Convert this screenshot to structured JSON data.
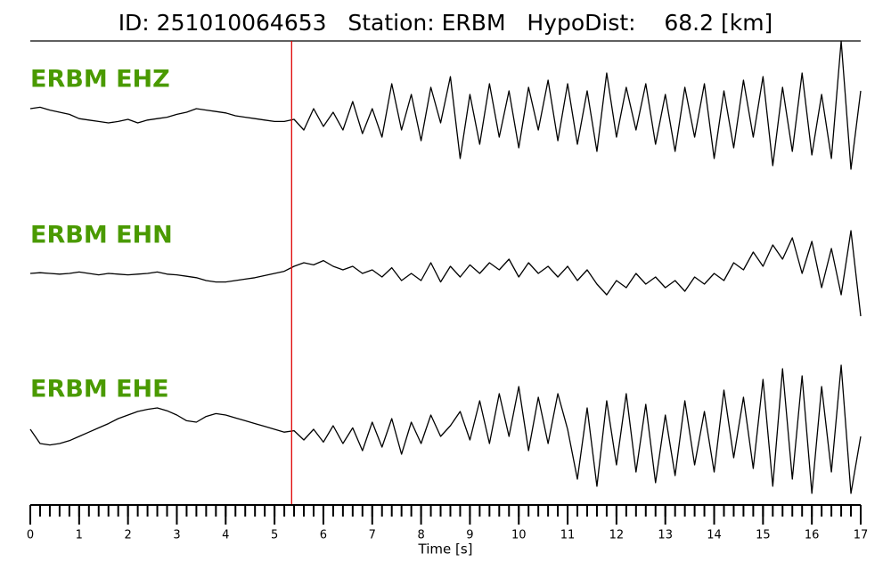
{
  "chart_data": {
    "type": "line",
    "title": "ID: 251010064653   Station: ERBM   HypoDist:    68.2 [km]",
    "xlabel": "Time [s]",
    "xlim": [
      0,
      17
    ],
    "xticks": [
      0,
      1,
      2,
      3,
      4,
      5,
      6,
      7,
      8,
      9,
      10,
      11,
      12,
      13,
      14,
      15,
      16,
      17
    ],
    "minor_tick_step": 0.2,
    "marker_x": 5.35,
    "marker_color": "#e00000",
    "label_color": "#4a9a00",
    "x": [
      0,
      0.2,
      0.4,
      0.6,
      0.8,
      1,
      1.2,
      1.4,
      1.6,
      1.8,
      2,
      2.2,
      2.4,
      2.6,
      2.8,
      3,
      3.2,
      3.4,
      3.6,
      3.8,
      4,
      4.2,
      4.4,
      4.6,
      4.8,
      5,
      5.2,
      5.4,
      5.6,
      5.8,
      6,
      6.2,
      6.4,
      6.6,
      6.8,
      7,
      7.2,
      7.4,
      7.6,
      7.8,
      8,
      8.2,
      8.4,
      8.6,
      8.8,
      9,
      9.2,
      9.4,
      9.6,
      9.8,
      10,
      10.2,
      10.4,
      10.6,
      10.8,
      11,
      11.2,
      11.4,
      11.6,
      11.8,
      12,
      12.2,
      12.4,
      12.6,
      12.8,
      13,
      13.2,
      13.4,
      13.6,
      13.8,
      14,
      14.2,
      14.4,
      14.6,
      14.8,
      15,
      15.2,
      15.4,
      15.6,
      15.8,
      16,
      16.2,
      16.4,
      16.6,
      16.8,
      17
    ],
    "series": [
      {
        "name": "ERBM EHZ",
        "color": "#000000",
        "values": [
          0.1,
          0.12,
          0.08,
          0.05,
          0.02,
          -0.04,
          -0.06,
          -0.08,
          -0.1,
          -0.08,
          -0.05,
          -0.1,
          -0.06,
          -0.04,
          -0.02,
          0.02,
          0.05,
          0.1,
          0.08,
          0.06,
          0.04,
          0.0,
          -0.02,
          -0.04,
          -0.06,
          -0.08,
          -0.08,
          -0.05,
          -0.2,
          0.1,
          -0.15,
          0.05,
          -0.2,
          0.2,
          -0.25,
          0.1,
          -0.3,
          0.45,
          -0.2,
          0.3,
          -0.35,
          0.4,
          -0.1,
          0.55,
          -0.6,
          0.3,
          -0.4,
          0.45,
          -0.3,
          0.35,
          -0.45,
          0.4,
          -0.2,
          0.5,
          -0.35,
          0.45,
          -0.4,
          0.35,
          -0.5,
          0.6,
          -0.3,
          0.4,
          -0.2,
          0.45,
          -0.4,
          0.3,
          -0.5,
          0.4,
          -0.3,
          0.45,
          -0.6,
          0.35,
          -0.45,
          0.5,
          -0.3,
          0.55,
          -0.7,
          0.4,
          -0.5,
          0.6,
          -0.55,
          0.3,
          -0.6,
          1.05,
          -0.75,
          0.35
        ]
      },
      {
        "name": "ERBM EHN",
        "color": "#000000",
        "values": [
          0,
          0.01,
          0.0,
          -0.01,
          0.0,
          0.02,
          0.0,
          -0.02,
          0.0,
          -0.01,
          -0.02,
          -0.01,
          0.0,
          0.02,
          -0.01,
          -0.02,
          -0.04,
          -0.06,
          -0.1,
          -0.12,
          -0.12,
          -0.1,
          -0.08,
          -0.06,
          -0.03,
          0.0,
          0.03,
          0.1,
          0.15,
          0.12,
          0.18,
          0.1,
          0.05,
          0.1,
          0.0,
          0.05,
          -0.05,
          0.08,
          -0.1,
          0.0,
          -0.1,
          0.15,
          -0.12,
          0.1,
          -0.05,
          0.12,
          0.0,
          0.15,
          0.05,
          0.2,
          -0.05,
          0.15,
          0.0,
          0.1,
          -0.05,
          0.1,
          -0.1,
          0.05,
          -0.15,
          -0.3,
          -0.1,
          -0.2,
          0.0,
          -0.15,
          -0.05,
          -0.2,
          -0.1,
          -0.25,
          -0.05,
          -0.15,
          0.0,
          -0.1,
          0.15,
          0.05,
          0.3,
          0.1,
          0.4,
          0.2,
          0.5,
          0.0,
          0.45,
          -0.2,
          0.35,
          -0.3,
          0.6,
          -0.6
        ]
      },
      {
        "name": "ERBM EHE",
        "color": "#000000",
        "values": [
          0.1,
          -0.1,
          -0.12,
          -0.1,
          -0.06,
          0.0,
          0.06,
          0.12,
          0.18,
          0.25,
          0.3,
          0.35,
          0.38,
          0.4,
          0.36,
          0.3,
          0.22,
          0.2,
          0.28,
          0.32,
          0.3,
          0.26,
          0.22,
          0.18,
          0.14,
          0.1,
          0.06,
          0.08,
          -0.05,
          0.1,
          -0.08,
          0.15,
          -0.1,
          0.12,
          -0.2,
          0.2,
          -0.15,
          0.25,
          -0.25,
          0.2,
          -0.1,
          0.3,
          0.0,
          0.15,
          0.35,
          -0.05,
          0.5,
          -0.1,
          0.6,
          0.0,
          0.7,
          -0.2,
          0.55,
          -0.1,
          0.6,
          0.1,
          -0.6,
          0.4,
          -0.7,
          0.5,
          -0.4,
          0.6,
          -0.5,
          0.45,
          -0.65,
          0.3,
          -0.55,
          0.5,
          -0.4,
          0.35,
          -0.5,
          0.65,
          -0.3,
          0.55,
          -0.45,
          0.8,
          -0.7,
          0.95,
          -0.6,
          0.85,
          -0.8,
          0.7,
          -0.5,
          1.0,
          -0.8,
          0.0
        ]
      }
    ]
  }
}
